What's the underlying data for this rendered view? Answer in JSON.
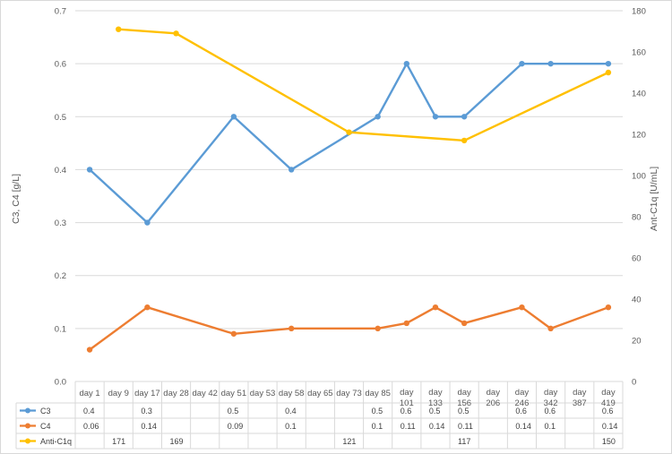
{
  "chart_data": {
    "type": "line",
    "categories": [
      "day 1",
      "day 9",
      "day 17",
      "day 28",
      "day 42",
      "day 51",
      "day 53",
      "day 58",
      "day 65",
      "day 73",
      "day 85",
      "day 101",
      "day 133",
      "day 156",
      "day 206",
      "day 246",
      "day 342",
      "day 387",
      "day 419"
    ],
    "series": [
      {
        "name": "C3",
        "axis": "left",
        "color": "#5B9BD5",
        "values": [
          0.4,
          null,
          0.3,
          null,
          null,
          0.5,
          null,
          0.4,
          null,
          null,
          0.5,
          0.6,
          0.5,
          0.5,
          null,
          0.6,
          0.6,
          null,
          0.6
        ]
      },
      {
        "name": "C4",
        "axis": "left",
        "color": "#ED7D31",
        "values": [
          0.06,
          null,
          0.14,
          null,
          null,
          0.09,
          null,
          0.1,
          null,
          null,
          0.1,
          0.11,
          0.14,
          0.11,
          null,
          0.14,
          0.1,
          null,
          0.14
        ]
      },
      {
        "name": "Anti-C1q",
        "axis": "right",
        "color": "#FFC000",
        "values": [
          null,
          171,
          null,
          169,
          null,
          null,
          null,
          null,
          null,
          121,
          null,
          null,
          null,
          117,
          null,
          null,
          null,
          null,
          150
        ]
      }
    ],
    "ylabel": "C3, C4 [g/L]",
    "y2label": "Ant-C1q [U/mL]",
    "ylim": [
      0,
      0.7
    ],
    "y2lim": [
      0,
      180
    ],
    "yticks": [
      "0.0",
      "0.1",
      "0.2",
      "0.3",
      "0.4",
      "0.5",
      "0.6",
      "0.7"
    ],
    "y2ticks": [
      "0",
      "20",
      "40",
      "60",
      "80",
      "100",
      "120",
      "140",
      "160",
      "180"
    ],
    "grid": true,
    "legend": "data-table"
  }
}
